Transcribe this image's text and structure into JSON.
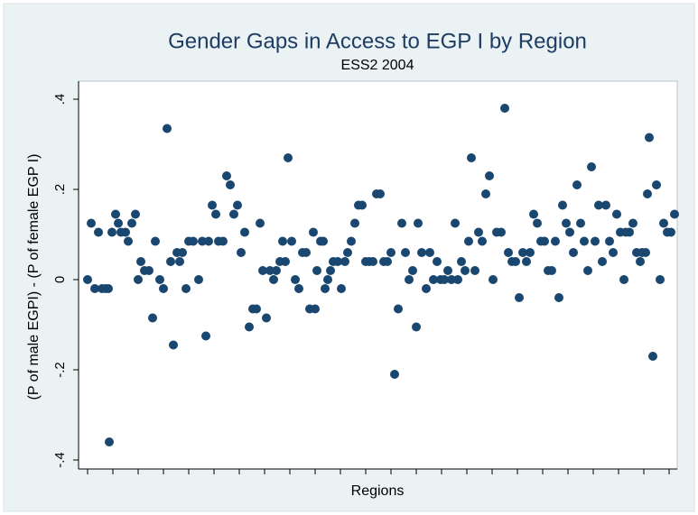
{
  "chart_data": {
    "type": "scatter",
    "title": "Gender Gaps in Access to EGP I by Region",
    "subtitle": "ESS2 2004",
    "x_label": "Regions",
    "y_label": "(P of male EGPI) - (P of female EGP I)",
    "color": "#1a476f",
    "xlim": [
      -10,
      653
    ],
    "ylim": [
      -0.42,
      0.44
    ],
    "xticks": [
      0,
      28,
      56,
      84,
      112,
      140,
      168,
      196,
      224,
      252,
      280,
      308,
      336,
      364,
      392,
      420,
      448,
      476,
      504,
      532,
      560,
      588,
      616,
      644
    ],
    "yticks": [
      {
        "value": -0.4,
        "label": "-.4"
      },
      {
        "value": -0.2,
        "label": "-.2"
      },
      0,
      {
        "value": 0.2,
        "label": ".2"
      },
      {
        "value": 0.4,
        "label": ".4"
      }
    ],
    "x": [
      0,
      4,
      8,
      12,
      16,
      20,
      23,
      24,
      27,
      31,
      34,
      37,
      42,
      45,
      49,
      53,
      56,
      59,
      63,
      68,
      72,
      75,
      80,
      84,
      88,
      92,
      95,
      99,
      102,
      105,
      109,
      112,
      117,
      123,
      127,
      131,
      134,
      138,
      142,
      145,
      150,
      154,
      158,
      162,
      166,
      170,
      174,
      179,
      183,
      187,
      191,
      194,
      198,
      202,
      206,
      209,
      213,
      216,
      219,
      222,
      226,
      230,
      234,
      238,
      242,
      246,
      250,
      252,
      254,
      258,
      261,
      263,
      266,
      269,
      272,
      277,
      281,
      285,
      288,
      292,
      296,
      300,
      304,
      308,
      312,
      316,
      320,
      324,
      328,
      332,
      336,
      340,
      344,
      348,
      352,
      356,
      360,
      364,
      366,
      370,
      375,
      379,
      383,
      387,
      391,
      395,
      399,
      403,
      407,
      410,
      414,
      418,
      422,
      425,
      429,
      433,
      437,
      441,
      445,
      449,
      453,
      458,
      462,
      466,
      470,
      474,
      478,
      482,
      486,
      490,
      494,
      498,
      502,
      506,
      510,
      514,
      518,
      522,
      526,
      530,
      534,
      538,
      542,
      546,
      550,
      554,
      558,
      562,
      566,
      570,
      574,
      578,
      582,
      586,
      590,
      594,
      596,
      600,
      604,
      608,
      612,
      614,
      618,
      620,
      622,
      626,
      630,
      634,
      638,
      642,
      646,
      650
    ],
    "values": [
      0,
      0.125,
      -0.02,
      0.105,
      -0.02,
      -0.02,
      -0.02,
      -0.36,
      0.105,
      0.145,
      0.125,
      0.105,
      0.105,
      0.085,
      0.125,
      0.145,
      0,
      0.04,
      0.02,
      0.02,
      -0.085,
      0.085,
      0,
      -0.02,
      0.335,
      0.04,
      -0.145,
      0.06,
      0.04,
      0.06,
      -0.02,
      0.085,
      0.085,
      0,
      0.085,
      -0.125,
      0.085,
      0.165,
      0.145,
      0.085,
      0.085,
      0.23,
      0.21,
      0.145,
      0.165,
      0.06,
      0.105,
      -0.105,
      -0.065,
      -0.065,
      0.125,
      0.02,
      -0.085,
      0.02,
      0,
      0.02,
      0.04,
      0.085,
      0.04,
      0.27,
      0.085,
      0,
      -0.02,
      0.06,
      0.06,
      -0.065,
      0.105,
      -0.065,
      0.02,
      0.085,
      0.085,
      -0.02,
      0,
      0.02,
      0.04,
      0.04,
      -0.02,
      0.04,
      0.06,
      0.085,
      0.125,
      0.165,
      0.165,
      0.04,
      0.04,
      0.04,
      0.19,
      0.19,
      0.04,
      0.04,
      0.06,
      -0.21,
      -0.065,
      0.125,
      0.06,
      0,
      0.02,
      -0.105,
      0.125,
      0.06,
      -0.02,
      0.06,
      0,
      0.04,
      0,
      0,
      0.02,
      0,
      0.125,
      0,
      0.04,
      0.02,
      0.085,
      0.27,
      0.02,
      0.105,
      0.085,
      0.19,
      0.23,
      0,
      0.105,
      0.105,
      0.38,
      0.06,
      0.04,
      0.04,
      -0.04,
      0.06,
      0.04,
      0.06,
      0.145,
      0.125,
      0.085,
      0.085,
      0.02,
      0.02,
      0.085,
      -0.04,
      0.165,
      0.125,
      0.105,
      0.06,
      0.21,
      0.125,
      0.085,
      0.02,
      0.25,
      0.085,
      0.165,
      0.04,
      0.165,
      0.085,
      0.06,
      0.145,
      0.105,
      0,
      0.105,
      0.105,
      0.125,
      0.06,
      0.04,
      0.06,
      0.06,
      0.19,
      0.315,
      -0.17,
      0.21,
      0,
      0.125,
      0.105,
      0.105,
      0.145
    ]
  }
}
